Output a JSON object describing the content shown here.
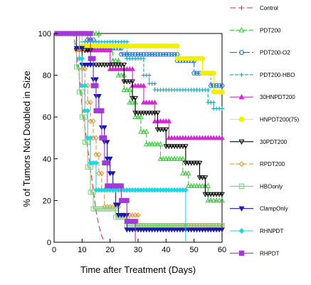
{
  "chart_data": {
    "type": "line",
    "step": true,
    "xlabel": "Time after Treatment (Days)",
    "ylabel": "% of Tumors Not Doubled in Size",
    "xlim": [
      0,
      60
    ],
    "ylim": [
      0,
      100
    ],
    "xticks": [
      0,
      10,
      20,
      30,
      40,
      50,
      60
    ],
    "yticks": [
      0,
      20,
      40,
      60,
      80,
      100
    ],
    "grid": false,
    "legend_position": "right",
    "series": [
      {
        "name": "Control",
        "color": "#e8303a",
        "marker": "plus",
        "dash": "8,4",
        "points": [
          [
            0,
            100
          ],
          [
            7,
            100
          ],
          [
            8,
            90
          ],
          [
            9,
            80
          ],
          [
            10,
            65
          ],
          [
            11,
            55
          ],
          [
            12,
            45
          ],
          [
            13,
            35
          ],
          [
            14,
            25
          ],
          [
            15,
            15
          ],
          [
            16,
            8
          ],
          [
            17,
            3
          ],
          [
            18,
            0
          ]
        ]
      },
      {
        "name": "PDT200",
        "color": "#3cc83c",
        "marker": "triangle",
        "dash": "6,3",
        "points": [
          [
            0,
            100
          ],
          [
            16,
            100
          ],
          [
            16,
            93
          ],
          [
            21,
            93
          ],
          [
            21,
            87
          ],
          [
            23,
            87
          ],
          [
            23,
            80
          ],
          [
            25,
            80
          ],
          [
            25,
            73
          ],
          [
            27,
            73
          ],
          [
            27,
            67
          ],
          [
            29,
            67
          ],
          [
            29,
            60
          ],
          [
            31,
            60
          ],
          [
            31,
            53
          ],
          [
            33,
            53
          ],
          [
            33,
            47
          ],
          [
            38,
            47
          ],
          [
            38,
            40
          ],
          [
            46,
            40
          ],
          [
            46,
            33
          ],
          [
            48,
            33
          ],
          [
            48,
            27
          ],
          [
            55,
            27
          ],
          [
            55,
            20
          ],
          [
            60,
            20
          ]
        ]
      },
      {
        "name": "PDT200-O2",
        "color": "#1a6fd6",
        "marker": "hexagon",
        "dash": "10,3,2,3",
        "points": [
          [
            0,
            100
          ],
          [
            12,
            100
          ],
          [
            12,
            97
          ],
          [
            14,
            97
          ],
          [
            14,
            93
          ],
          [
            24,
            93
          ],
          [
            24,
            90
          ],
          [
            44,
            90
          ],
          [
            44,
            87
          ],
          [
            50,
            87
          ],
          [
            50,
            81
          ],
          [
            56,
            81
          ],
          [
            56,
            75
          ],
          [
            60,
            75
          ]
        ]
      },
      {
        "name": "PDT200-HBO",
        "color": "#1aa9b8",
        "marker": "plus",
        "dash": "5,2",
        "points": [
          [
            0,
            100
          ],
          [
            10,
            100
          ],
          [
            10,
            96
          ],
          [
            26,
            96
          ],
          [
            26,
            88
          ],
          [
            32,
            88
          ],
          [
            32,
            80
          ],
          [
            34,
            80
          ],
          [
            34,
            76
          ],
          [
            36,
            76
          ],
          [
            36,
            73
          ],
          [
            55,
            73
          ],
          [
            55,
            67
          ],
          [
            57,
            67
          ],
          [
            57,
            64
          ],
          [
            60,
            64
          ]
        ]
      },
      {
        "name": "30HNPDT200",
        "color": "#d42ad4",
        "marker": "triangle",
        "dash": "",
        "points": [
          [
            0,
            100
          ],
          [
            12,
            100
          ],
          [
            12,
            92
          ],
          [
            20,
            92
          ],
          [
            20,
            83
          ],
          [
            28,
            83
          ],
          [
            28,
            75
          ],
          [
            32,
            75
          ],
          [
            32,
            67
          ],
          [
            36,
            67
          ],
          [
            36,
            58
          ],
          [
            41,
            58
          ],
          [
            41,
            50
          ],
          [
            60,
            50
          ]
        ]
      },
      {
        "name": "HNPDT200(75)",
        "color": "#f0f000",
        "marker": "circle",
        "dash": "",
        "points": [
          [
            0,
            100
          ],
          [
            10,
            100
          ],
          [
            10,
            94
          ],
          [
            44,
            94
          ],
          [
            44,
            88
          ],
          [
            53,
            88
          ],
          [
            53,
            81
          ],
          [
            57,
            81
          ],
          [
            57,
            72
          ],
          [
            60,
            72
          ]
        ]
      },
      {
        "name": "30PDT200",
        "color": "#000000",
        "marker": "triangle-down",
        "dash": "",
        "points": [
          [
            0,
            100
          ],
          [
            8,
            100
          ],
          [
            8,
            92
          ],
          [
            13,
            92
          ],
          [
            13,
            85
          ],
          [
            25,
            85
          ],
          [
            25,
            77
          ],
          [
            28,
            77
          ],
          [
            28,
            69
          ],
          [
            29,
            69
          ],
          [
            29,
            62
          ],
          [
            37,
            62
          ],
          [
            37,
            54
          ],
          [
            40,
            54
          ],
          [
            40,
            46
          ],
          [
            47,
            46
          ],
          [
            47,
            38
          ],
          [
            52,
            38
          ],
          [
            52,
            31
          ],
          [
            54,
            31
          ],
          [
            54,
            23
          ],
          [
            60,
            23
          ]
        ]
      },
      {
        "name": "RPDT200",
        "color": "#f0902a",
        "marker": "diamond",
        "dash": "6,3",
        "points": [
          [
            0,
            100
          ],
          [
            8,
            100
          ],
          [
            8,
            92
          ],
          [
            10,
            92
          ],
          [
            10,
            83
          ],
          [
            11,
            83
          ],
          [
            11,
            75
          ],
          [
            12,
            75
          ],
          [
            12,
            67
          ],
          [
            13,
            67
          ],
          [
            13,
            58
          ],
          [
            14,
            58
          ],
          [
            14,
            50
          ],
          [
            15,
            50
          ],
          [
            15,
            42
          ],
          [
            16,
            42
          ],
          [
            16,
            33
          ],
          [
            17,
            33
          ],
          [
            17,
            25
          ],
          [
            18,
            25
          ],
          [
            18,
            17
          ],
          [
            23,
            17
          ],
          [
            23,
            13
          ],
          [
            30,
            13
          ],
          [
            30,
            8
          ],
          [
            60,
            8
          ]
        ]
      },
      {
        "name": "HBOonly",
        "color": "#7ad07a",
        "marker": "square",
        "dash": "",
        "points": [
          [
            0,
            100
          ],
          [
            8,
            100
          ],
          [
            8,
            84
          ],
          [
            9,
            84
          ],
          [
            9,
            72
          ],
          [
            10,
            72
          ],
          [
            10,
            60
          ],
          [
            11,
            60
          ],
          [
            11,
            48
          ],
          [
            12,
            48
          ],
          [
            12,
            36
          ],
          [
            13,
            36
          ],
          [
            13,
            24
          ],
          [
            14,
            24
          ],
          [
            14,
            16
          ],
          [
            22,
            16
          ],
          [
            22,
            12
          ],
          [
            26,
            12
          ],
          [
            26,
            8
          ],
          [
            60,
            8
          ]
        ]
      },
      {
        "name": "ClampOnly",
        "color": "#1a1aaa",
        "marker": "triangle-down",
        "dash": "",
        "points": [
          [
            0,
            100
          ],
          [
            8,
            100
          ],
          [
            8,
            93
          ],
          [
            10,
            93
          ],
          [
            10,
            85
          ],
          [
            14,
            85
          ],
          [
            14,
            78
          ],
          [
            15,
            78
          ],
          [
            15,
            70
          ],
          [
            16,
            70
          ],
          [
            16,
            63
          ],
          [
            17,
            63
          ],
          [
            17,
            55
          ],
          [
            18,
            55
          ],
          [
            18,
            48
          ],
          [
            19,
            48
          ],
          [
            19,
            40
          ],
          [
            20,
            40
          ],
          [
            20,
            33
          ],
          [
            21,
            33
          ],
          [
            21,
            25
          ],
          [
            22,
            25
          ],
          [
            22,
            18
          ],
          [
            23,
            18
          ],
          [
            23,
            13
          ],
          [
            26,
            13
          ],
          [
            26,
            6
          ],
          [
            60,
            6
          ]
        ]
      },
      {
        "name": "RHNPDT",
        "color": "#1fd6e0",
        "marker": "diamond",
        "dash": "",
        "points": [
          [
            0,
            100
          ],
          [
            9,
            100
          ],
          [
            9,
            88
          ],
          [
            10,
            88
          ],
          [
            10,
            75
          ],
          [
            11,
            75
          ],
          [
            11,
            63
          ],
          [
            12,
            63
          ],
          [
            12,
            50
          ],
          [
            13,
            50
          ],
          [
            13,
            38
          ],
          [
            15,
            38
          ],
          [
            15,
            25
          ],
          [
            47,
            25
          ],
          [
            47,
            0
          ]
        ]
      },
      {
        "name": "RHPDT",
        "color": "#a23ad6",
        "marker": "square",
        "dash": "",
        "points": [
          [
            0,
            100
          ],
          [
            13,
            100
          ],
          [
            13,
            88
          ],
          [
            14,
            88
          ],
          [
            14,
            75
          ],
          [
            15,
            75
          ],
          [
            15,
            63
          ],
          [
            17,
            63
          ],
          [
            17,
            50
          ],
          [
            18,
            50
          ],
          [
            18,
            38
          ],
          [
            19,
            38
          ],
          [
            19,
            27
          ],
          [
            24,
            27
          ],
          [
            24,
            20
          ],
          [
            26,
            20
          ],
          [
            26,
            10
          ],
          [
            29,
            10
          ],
          [
            29,
            0
          ]
        ]
      }
    ]
  }
}
